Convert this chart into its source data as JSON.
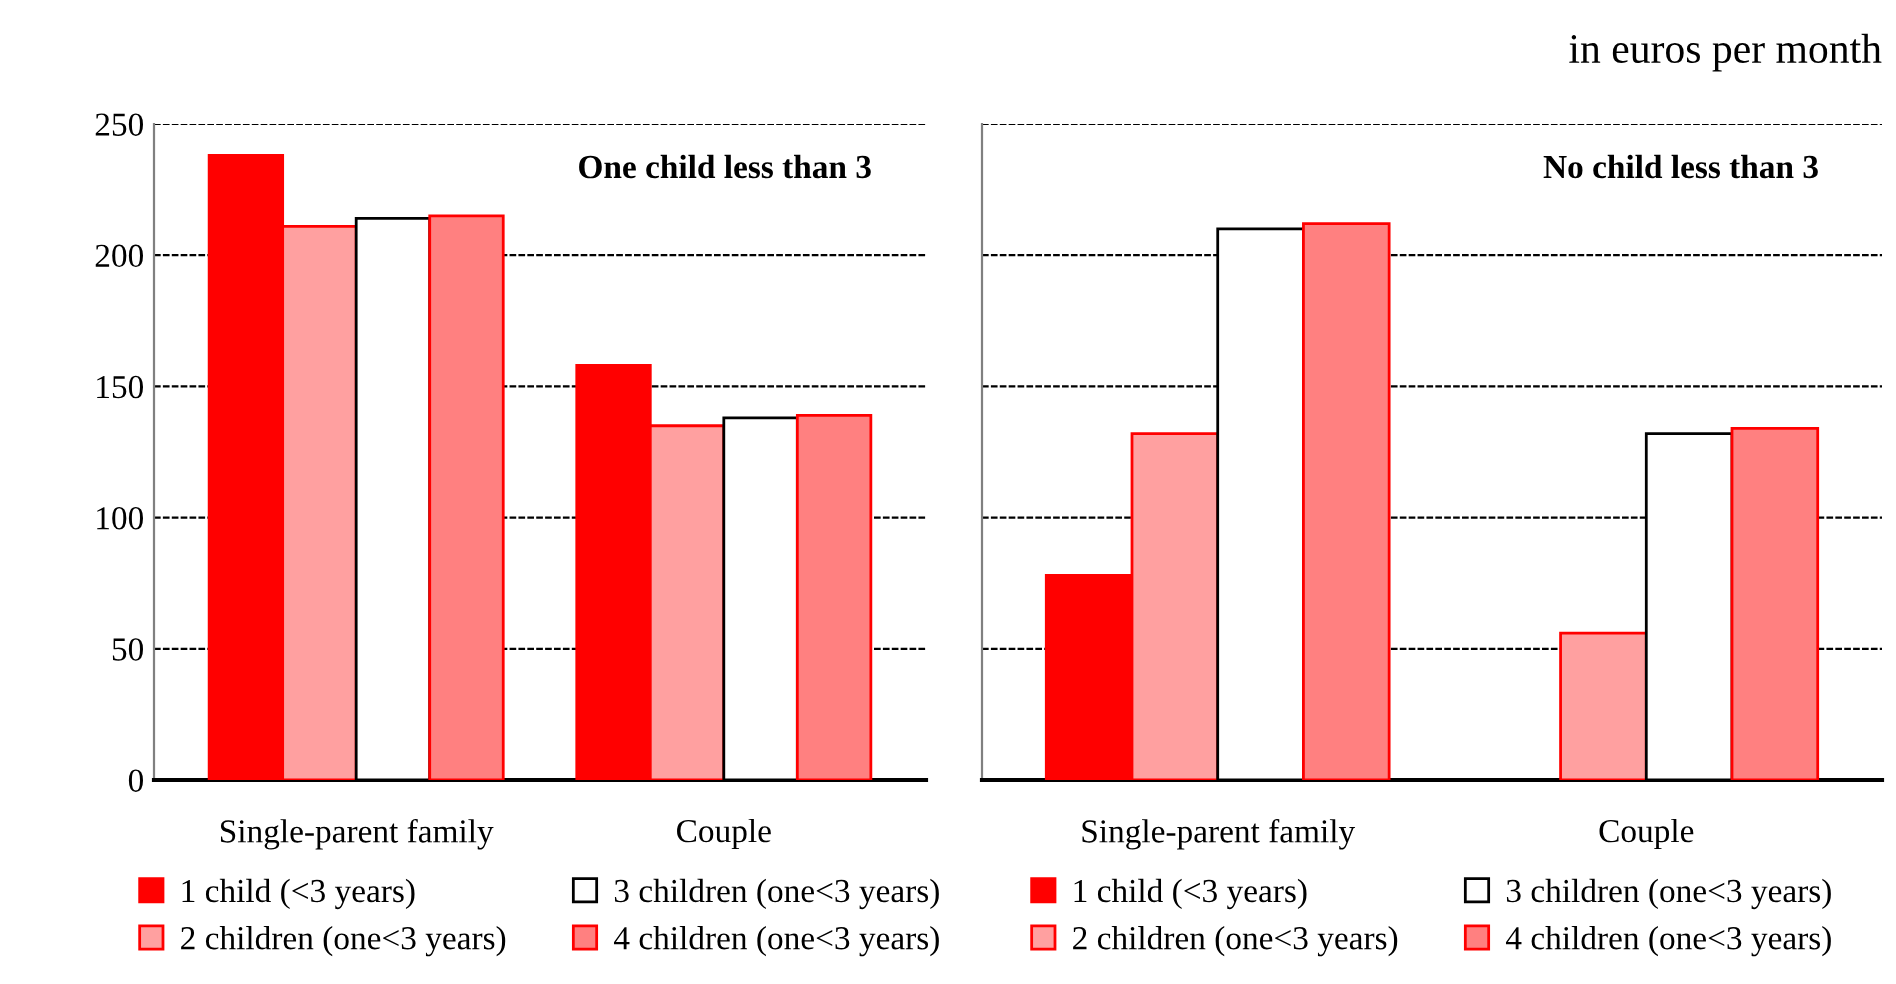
{
  "chart_data": [
    {
      "type": "bar",
      "categories": [
        "Single-parent family",
        "Couple"
      ],
      "series": [
        {
          "name": "1 child (<3 years)",
          "color": "#ff0000",
          "values": [
            238,
            158
          ]
        },
        {
          "name": "2 children (one<3 years)",
          "color": "#ffa0a0",
          "values": [
            211,
            135
          ]
        },
        {
          "name": "3 children (one<3 years)",
          "color": "#ffffff",
          "values": [
            214,
            138
          ]
        },
        {
          "name": "4 children (one<3 years)",
          "color": "#ff8080",
          "values": [
            215,
            139
          ]
        }
      ],
      "ylim": [
        0,
        250
      ],
      "yticks": [
        0,
        50,
        100,
        150,
        200,
        250
      ],
      "grid": "y",
      "legend": "bottom",
      "annotations": [
        "One child less than 3"
      ]
    },
    {
      "type": "bar",
      "categories": [
        "Single-parent family",
        "Couple"
      ],
      "series": [
        {
          "name": "1 child (<3 years)",
          "color": "#ff0000",
          "values": [
            78,
            null
          ]
        },
        {
          "name": "2 children (one<3 years)",
          "color": "#ffa0a0",
          "values": [
            132,
            56
          ]
        },
        {
          "name": "3 children (one<3 years)",
          "color": "#ffffff",
          "values": [
            210,
            132
          ]
        },
        {
          "name": "4 children (one<3 years)",
          "color": "#ff8080",
          "values": [
            212,
            134
          ]
        }
      ],
      "ylim": [
        0,
        250
      ],
      "yticks": [
        0,
        50,
        100,
        150,
        200,
        250
      ],
      "grid": "y",
      "legend": "bottom",
      "tick_labels": "x",
      "annotations": [
        "No child less than 3",
        "in euros per month"
      ]
    }
  ]
}
